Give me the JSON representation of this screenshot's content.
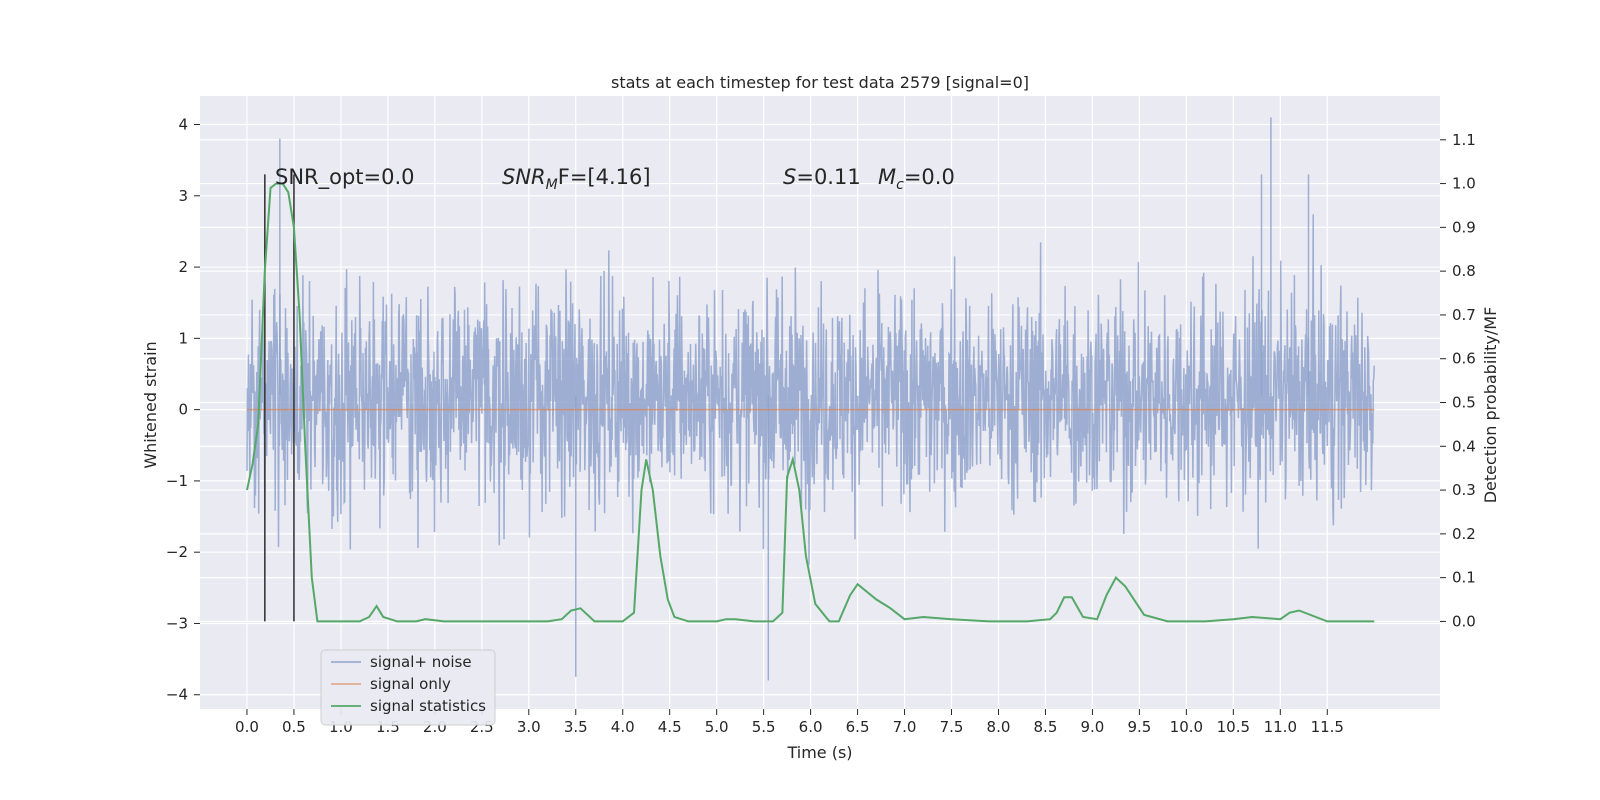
{
  "chart_data": {
    "type": "line",
    "title": "stats at each timestep for test data 2579 [signal=0]",
    "xlabel": "Time (s)",
    "ylabel": "Whitened strain",
    "ylabel_right": "Detection probability/MF",
    "xlim": [
      -0.5,
      12.7
    ],
    "ylim": [
      -4.2,
      4.4
    ],
    "ylim_right": [
      -0.2,
      1.2
    ],
    "x_ticks": [
      "0.0",
      "0.5",
      "1.0",
      "1.5",
      "2.0",
      "2.5",
      "3.0",
      "3.5",
      "4.0",
      "4.5",
      "5.0",
      "5.5",
      "6.0",
      "6.5",
      "7.0",
      "7.5",
      "8.0",
      "8.5",
      "9.0",
      "9.5",
      "10.0",
      "10.5",
      "11.0",
      "11.5"
    ],
    "y_ticks": [
      "4",
      "3",
      "2",
      "1",
      "0",
      "−1",
      "−2",
      "−3",
      "−4"
    ],
    "y_ticks_right": [
      "1.1",
      "1.0",
      "0.9",
      "0.8",
      "0.7",
      "0.6",
      "0.5",
      "0.4",
      "0.3",
      "0.2",
      "0.1",
      "0.0"
    ],
    "grid": true,
    "legend_position": "lower-left",
    "annotations": {
      "snr_opt": "SNR_opt=0.0",
      "snr_mf_var": "SNR",
      "snr_mf_sub": "M",
      "snr_mf_rest": "F=[4.16]",
      "s_var": "S",
      "s_rest": "=0.11",
      "mc_var": "M",
      "mc_sub": "c",
      "mc_rest": "=0.0"
    },
    "vertical_markers_x": [
      0.19,
      0.5
    ],
    "noise": {
      "x_range": [
        0.0,
        12.0
      ],
      "typical_range": [
        -2.2,
        2.6
      ],
      "max": 4.1,
      "min": -3.75
    },
    "series": [
      {
        "name": "signal+ noise",
        "color": "#8fa3cc",
        "description_values": "noise"
      },
      {
        "name": "signal only",
        "color": "#dd8452",
        "x": [
          0.0,
          12.0
        ],
        "y": [
          0.0,
          0.0
        ]
      },
      {
        "name": "signal statistics",
        "color": "#55a868",
        "x": [
          0.0,
          0.06,
          0.12,
          0.19,
          0.25,
          0.31,
          0.38,
          0.44,
          0.5,
          0.56,
          0.62,
          0.69,
          0.75,
          0.85,
          1.0,
          1.2,
          1.3,
          1.38,
          1.45,
          1.6,
          1.8,
          1.9,
          2.1,
          2.5,
          3.0,
          3.2,
          3.35,
          3.45,
          3.55,
          3.7,
          4.0,
          4.12,
          4.2,
          4.25,
          4.32,
          4.4,
          4.48,
          4.55,
          4.7,
          5.0,
          5.1,
          5.2,
          5.4,
          5.6,
          5.7,
          5.75,
          5.81,
          5.88,
          5.95,
          6.05,
          6.2,
          6.3,
          6.42,
          6.5,
          6.7,
          6.85,
          7.0,
          7.2,
          7.5,
          7.9,
          8.3,
          8.55,
          8.62,
          8.7,
          8.78,
          8.9,
          9.05,
          9.15,
          9.25,
          9.35,
          9.55,
          9.8,
          10.2,
          10.5,
          10.7,
          11.0,
          11.1,
          11.2,
          11.5,
          12.0
        ],
        "y": [
          0.3,
          0.36,
          0.45,
          0.8,
          0.99,
          1.0,
          1.0,
          0.98,
          0.9,
          0.7,
          0.4,
          0.1,
          0.0,
          0.0,
          0.0,
          0.0,
          0.01,
          0.035,
          0.01,
          0.0,
          0.0,
          0.005,
          0.0,
          0.0,
          0.0,
          0.0,
          0.005,
          0.025,
          0.03,
          0.0,
          0.0,
          0.02,
          0.3,
          0.37,
          0.3,
          0.15,
          0.05,
          0.01,
          0.0,
          0.0,
          0.005,
          0.005,
          0.0,
          0.0,
          0.02,
          0.33,
          0.37,
          0.3,
          0.15,
          0.04,
          0.0,
          0.0,
          0.06,
          0.085,
          0.05,
          0.03,
          0.005,
          0.01,
          0.005,
          0.0,
          0.0,
          0.005,
          0.02,
          0.055,
          0.055,
          0.01,
          0.005,
          0.06,
          0.1,
          0.08,
          0.015,
          0.0,
          0.0,
          0.005,
          0.01,
          0.005,
          0.02,
          0.025,
          0.0,
          0.0
        ]
      }
    ]
  }
}
